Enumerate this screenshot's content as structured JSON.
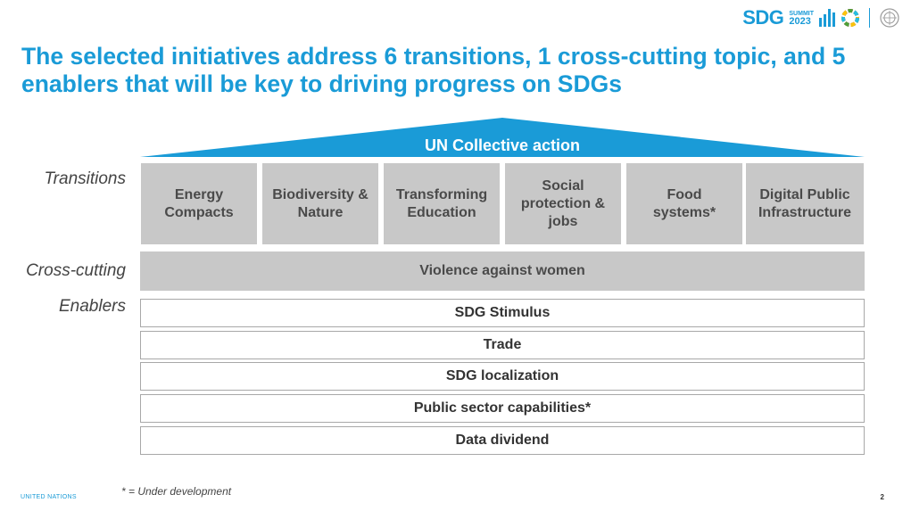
{
  "header": {
    "logo_text": "SDG",
    "logo_summit": "SUMMIT",
    "logo_year": "2023"
  },
  "title": "The selected initiatives address 6 transitions, 1 cross-cutting topic, and 5 enablers that will be key to driving progress on SDGs",
  "roof": {
    "label": "UN Collective action",
    "color": "#1a9bd7"
  },
  "labels": {
    "transitions": "Transitions",
    "cross_cutting": "Cross-cutting",
    "enablers": "Enablers"
  },
  "transitions": [
    "Energy Compacts",
    "Biodiversity & Nature",
    "Transforming Education",
    "Social protection & jobs",
    "Food systems*",
    "Digital Public Infrastructure"
  ],
  "cross_cutting": "Violence against women",
  "enablers": [
    "SDG Stimulus",
    "Trade",
    "SDG localization",
    "Public sector capabilities*",
    "Data dividend"
  ],
  "footnote": "* = Under development",
  "footer": {
    "org": "UNITED NATIONS",
    "page": "2"
  }
}
